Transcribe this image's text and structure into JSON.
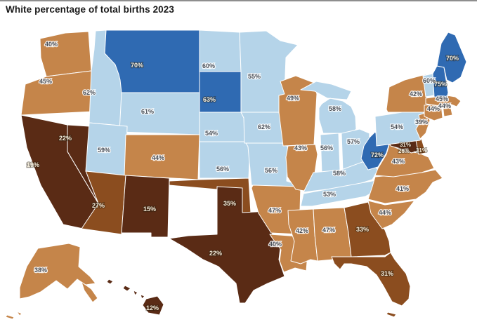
{
  "title": "White percentage of total births 2023",
  "chart_data": {
    "type": "choropleth",
    "title": "White percentage of total births 2023",
    "unit": "%",
    "color_classes": {
      "dark_blue": "#2f6ab2",
      "light_blue": "#b5d4e9",
      "orange": "#c5854a",
      "mid_brown": "#8b4d1f",
      "dark_brown": "#5a2b15"
    },
    "states": [
      {
        "id": "WA",
        "name": "Washington",
        "value": 40,
        "label": "40%",
        "tone": "orange"
      },
      {
        "id": "OR",
        "name": "Oregon",
        "value": 45,
        "label": "45%",
        "tone": "orange"
      },
      {
        "id": "CA",
        "name": "California",
        "value": 19,
        "label": "19%",
        "tone": "dark_brown"
      },
      {
        "id": "NV",
        "name": "Nevada",
        "value": 22,
        "label": "22%",
        "tone": "dark_brown"
      },
      {
        "id": "ID",
        "name": "Idaho",
        "value": 62,
        "label": "62%",
        "tone": "light_blue"
      },
      {
        "id": "MT",
        "name": "Montana",
        "value": 70,
        "label": "70%",
        "tone": "dark_blue"
      },
      {
        "id": "WY",
        "name": "Wyoming",
        "value": 61,
        "label": "61%",
        "tone": "light_blue"
      },
      {
        "id": "UT",
        "name": "Utah",
        "value": 59,
        "label": "59%",
        "tone": "light_blue"
      },
      {
        "id": "CO",
        "name": "Colorado",
        "value": 44,
        "label": "44%",
        "tone": "orange"
      },
      {
        "id": "AZ",
        "name": "Arizona",
        "value": 27,
        "label": "27%",
        "tone": "mid_brown"
      },
      {
        "id": "NM",
        "name": "New Mexico",
        "value": 15,
        "label": "15%",
        "tone": "dark_brown"
      },
      {
        "id": "ND",
        "name": "North Dakota",
        "value": 60,
        "label": "60%",
        "tone": "light_blue"
      },
      {
        "id": "SD",
        "name": "South Dakota",
        "value": 63,
        "label": "63%",
        "tone": "dark_blue"
      },
      {
        "id": "NE",
        "name": "Nebraska",
        "value": 54,
        "label": "54%",
        "tone": "light_blue"
      },
      {
        "id": "KS",
        "name": "Kansas",
        "value": 56,
        "label": "56%",
        "tone": "light_blue"
      },
      {
        "id": "OK",
        "name": "Oklahoma",
        "value": 35,
        "label": "35%",
        "tone": "mid_brown"
      },
      {
        "id": "TX",
        "name": "Texas",
        "value": 22,
        "label": "22%",
        "tone": "dark_brown"
      },
      {
        "id": "MN",
        "name": "Minnesota",
        "value": 55,
        "label": "55%",
        "tone": "light_blue"
      },
      {
        "id": "IA",
        "name": "Iowa",
        "value": 62,
        "label": "62%",
        "tone": "light_blue"
      },
      {
        "id": "MO",
        "name": "Missouri",
        "value": 56,
        "label": "56%",
        "tone": "light_blue"
      },
      {
        "id": "AR",
        "name": "Arkansas",
        "value": 47,
        "label": "47%",
        "tone": "orange"
      },
      {
        "id": "LA",
        "name": "Louisiana",
        "value": 40,
        "label": "40%",
        "tone": "orange"
      },
      {
        "id": "WI",
        "name": "Wisconsin",
        "value": 49,
        "label": "49%",
        "tone": "orange"
      },
      {
        "id": "IL",
        "name": "Illinois",
        "value": 43,
        "label": "43%",
        "tone": "orange"
      },
      {
        "id": "MI",
        "name": "Michigan",
        "value": 58,
        "label": "58%",
        "tone": "light_blue"
      },
      {
        "id": "IN",
        "name": "Indiana",
        "value": 56,
        "label": "56%",
        "tone": "light_blue"
      },
      {
        "id": "OH",
        "name": "Ohio",
        "value": 57,
        "label": "57%",
        "tone": "light_blue"
      },
      {
        "id": "KY",
        "name": "Kentucky",
        "value": 58,
        "label": "58%",
        "tone": "light_blue"
      },
      {
        "id": "TN",
        "name": "Tennessee",
        "value": 53,
        "label": "53%",
        "tone": "light_blue"
      },
      {
        "id": "MS",
        "name": "Mississippi",
        "value": 42,
        "label": "42%",
        "tone": "orange"
      },
      {
        "id": "AL",
        "name": "Alabama",
        "value": 47,
        "label": "47%",
        "tone": "orange"
      },
      {
        "id": "GA",
        "name": "Georgia",
        "value": 33,
        "label": "33%",
        "tone": "mid_brown"
      },
      {
        "id": "FL",
        "name": "Florida",
        "value": 31,
        "label": "31%",
        "tone": "mid_brown"
      },
      {
        "id": "SC",
        "name": "South Carolina",
        "value": 44,
        "label": "44%",
        "tone": "orange"
      },
      {
        "id": "NC",
        "name": "North Carolina",
        "value": 41,
        "label": "41%",
        "tone": "orange"
      },
      {
        "id": "VA",
        "name": "Virginia",
        "value": 43,
        "label": "43%",
        "tone": "orange"
      },
      {
        "id": "WV",
        "name": "West Virginia",
        "value": 72,
        "label": "72%",
        "tone": "dark_blue"
      },
      {
        "id": "MD",
        "name": "Maryland",
        "value": 31,
        "label": "31%",
        "tone": "dark_brown"
      },
      {
        "id": "DC",
        "name": "District of Columbia",
        "value": 26,
        "label": "26%",
        "tone": "dark_brown"
      },
      {
        "id": "DE",
        "name": "Delaware",
        "value": 31,
        "label": "31%",
        "tone": "mid_brown"
      },
      {
        "id": "PA",
        "name": "Pennsylvania",
        "value": 54,
        "label": "54%",
        "tone": "light_blue"
      },
      {
        "id": "NJ",
        "name": "New Jersey",
        "value": 39,
        "label": "39%",
        "tone": "orange"
      },
      {
        "id": "NY",
        "name": "New York",
        "value": 42,
        "label": "42%",
        "tone": "orange"
      },
      {
        "id": "CT",
        "name": "Connecticut",
        "value": 44,
        "label": "44%",
        "tone": "orange"
      },
      {
        "id": "RI",
        "name": "Rhode Island",
        "value": 44,
        "label": "44%",
        "tone": "orange"
      },
      {
        "id": "MA",
        "name": "Massachusetts",
        "value": 45,
        "label": "45%",
        "tone": "orange"
      },
      {
        "id": "VT",
        "name": "Vermont",
        "value": 60,
        "label": "60%",
        "tone": "light_blue"
      },
      {
        "id": "NH",
        "name": "New Hampshire",
        "value": 75,
        "label": "75%",
        "tone": "dark_blue"
      },
      {
        "id": "ME",
        "name": "Maine",
        "value": 70,
        "label": "70%",
        "tone": "dark_blue"
      },
      {
        "id": "AK",
        "name": "Alaska",
        "value": 38,
        "label": "38%",
        "tone": "orange"
      },
      {
        "id": "HI",
        "name": "Hawaii",
        "value": 12,
        "label": "12%",
        "tone": "dark_brown"
      }
    ]
  }
}
